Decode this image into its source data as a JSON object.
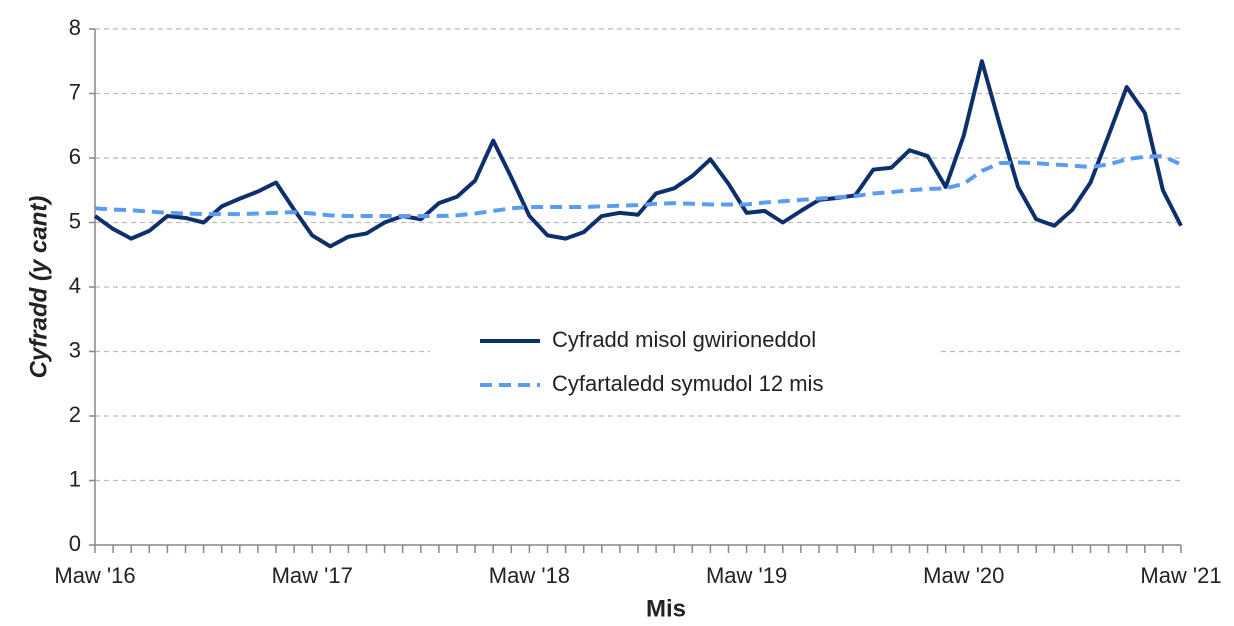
{
  "chart_data": {
    "type": "line",
    "y_label": "Cyfradd (y cant)",
    "x_label": "Mis",
    "categories": [
      "Maw '16",
      null,
      null,
      null,
      null,
      null,
      null,
      null,
      null,
      null,
      null,
      null,
      "Maw '17",
      null,
      null,
      null,
      null,
      null,
      null,
      null,
      null,
      null,
      null,
      null,
      "Maw '18",
      null,
      null,
      null,
      null,
      null,
      null,
      null,
      null,
      null,
      null,
      null,
      "Maw '19",
      null,
      null,
      null,
      null,
      null,
      null,
      null,
      null,
      null,
      null,
      null,
      "Maw '20",
      null,
      null,
      null,
      null,
      null,
      null,
      null,
      null,
      null,
      null,
      null,
      "Maw '21"
    ],
    "series": [
      {
        "name": "Cyfradd misol gwirioneddol",
        "color": "#0d2f6b",
        "dash": false,
        "values": [
          5.1,
          4.9,
          4.75,
          4.87,
          5.1,
          5.07,
          5.0,
          5.25,
          5.37,
          5.48,
          5.62,
          5.2,
          4.8,
          4.63,
          4.78,
          4.83,
          5.0,
          5.1,
          5.05,
          5.3,
          5.4,
          5.65,
          6.27,
          5.7,
          5.1,
          4.8,
          4.75,
          4.85,
          5.1,
          5.15,
          5.12,
          5.45,
          5.53,
          5.72,
          5.98,
          5.6,
          5.15,
          5.18,
          5.0,
          5.18,
          5.35,
          5.38,
          5.42,
          5.82,
          5.85,
          6.12,
          6.03,
          5.55,
          6.35,
          7.5,
          6.5,
          5.55,
          5.05,
          4.95,
          5.2,
          5.62,
          6.35,
          7.1,
          6.7,
          5.5,
          4.95
        ]
      },
      {
        "name": "Cyfartaledd symudol 12 mis",
        "color": "#5b9cf0",
        "dash": true,
        "values": [
          5.22,
          5.2,
          5.19,
          5.17,
          5.15,
          5.14,
          5.13,
          5.13,
          5.13,
          5.14,
          5.15,
          5.16,
          5.14,
          5.11,
          5.1,
          5.1,
          5.1,
          5.1,
          5.1,
          5.1,
          5.11,
          5.14,
          5.18,
          5.22,
          5.24,
          5.24,
          5.24,
          5.24,
          5.25,
          5.26,
          5.27,
          5.29,
          5.3,
          5.29,
          5.28,
          5.28,
          5.28,
          5.31,
          5.33,
          5.35,
          5.37,
          5.39,
          5.41,
          5.45,
          5.47,
          5.5,
          5.52,
          5.53,
          5.6,
          5.8,
          5.92,
          5.93,
          5.92,
          5.9,
          5.88,
          5.86,
          5.9,
          5.98,
          6.02,
          6.03,
          5.9
        ]
      }
    ],
    "ylim": [
      0,
      8
    ],
    "yticks": [
      0,
      1,
      2,
      3,
      4,
      5,
      6,
      7,
      8
    ],
    "grid": true
  }
}
